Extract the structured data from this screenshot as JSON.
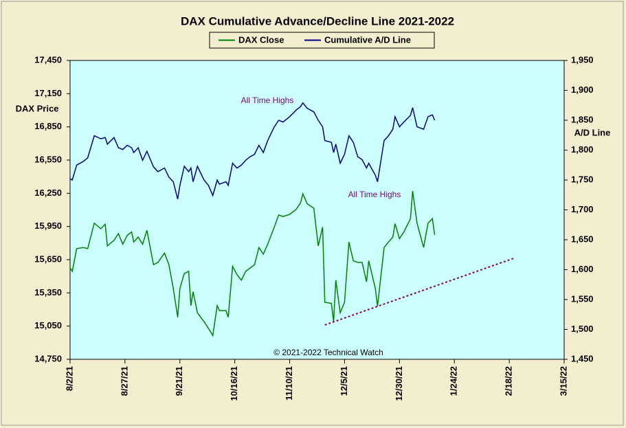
{
  "chart_data": {
    "type": "line",
    "title": "DAX Cumulative Advance/Decline Line 2021-2022",
    "ylabel": "DAX Price",
    "y2label": "A/D Line",
    "annotations": [
      "All Time Highs",
      "All Time Highs",
      "© 2021-2022 Technical Watch"
    ],
    "x": [
      "2021-08-02",
      "2021-08-03",
      "2021-08-05",
      "2021-08-08",
      "2021-08-10",
      "2021-08-13",
      "2021-08-16",
      "2021-08-18",
      "2021-08-19",
      "2021-08-22",
      "2021-08-24",
      "2021-08-26",
      "2021-08-28",
      "2021-08-30",
      "2021-08-31",
      "2021-09-02",
      "2021-09-04",
      "2021-09-06",
      "2021-09-09",
      "2021-09-11",
      "2021-09-14",
      "2021-09-16",
      "2021-09-18",
      "2021-09-20",
      "2021-09-21",
      "2021-09-23",
      "2021-09-25",
      "2021-09-26",
      "2021-09-27",
      "2021-09-29",
      "2021-10-02",
      "2021-10-04",
      "2021-10-06",
      "2021-10-08",
      "2021-10-09",
      "2021-10-12",
      "2021-10-13",
      "2021-10-15",
      "2021-10-17",
      "2021-10-19",
      "2021-10-21",
      "2021-10-23",
      "2021-10-25",
      "2021-10-27",
      "2021-10-29",
      "2021-10-31",
      "2021-11-03",
      "2021-11-05",
      "2021-11-07",
      "2021-11-10",
      "2021-11-13",
      "2021-11-15",
      "2021-11-16",
      "2021-11-18",
      "2021-11-21",
      "2021-11-23",
      "2021-11-25",
      "2021-11-26",
      "2021-11-29",
      "2021-11-30",
      "2021-12-01",
      "2021-12-03",
      "2021-12-05",
      "2021-12-07",
      "2021-12-09",
      "2021-12-11",
      "2021-12-13",
      "2021-12-15",
      "2021-12-16",
      "2021-12-19",
      "2021-12-20",
      "2021-12-23",
      "2021-12-25",
      "2021-12-27",
      "2021-12-28",
      "2021-12-30",
      "2022-01-01",
      "2022-01-04",
      "2022-01-05",
      "2022-01-07",
      "2022-01-10",
      "2022-01-12",
      "2022-01-14",
      "2022-01-15"
    ],
    "series": [
      {
        "name": "DAX Close",
        "color": "#008000",
        "values": [
          15575,
          15545,
          15750,
          15760,
          15750,
          15980,
          15930,
          15970,
          15775,
          15825,
          15885,
          15790,
          15870,
          15900,
          15810,
          15855,
          15790,
          15915,
          15605,
          15625,
          15710,
          15605,
          15390,
          15130,
          15390,
          15525,
          15545,
          15235,
          15360,
          15170,
          15090,
          15030,
          14965,
          15235,
          15190,
          15190,
          15130,
          15590,
          15515,
          15465,
          15545,
          15575,
          15605,
          15760,
          15700,
          15790,
          15945,
          16055,
          16040,
          16060,
          16105,
          16165,
          16245,
          16155,
          16115,
          15775,
          15945,
          15265,
          15255,
          15090,
          15465,
          15170,
          15265,
          15810,
          15640,
          15625,
          15625,
          15450,
          15640,
          15390,
          15230,
          15760,
          15810,
          15855,
          15975,
          15840,
          15900,
          16020,
          16270,
          15980,
          15760,
          15980,
          16020,
          15875
        ]
      },
      {
        "name": "Cumulative A/D Line",
        "color": "#000080",
        "axis": "y2",
        "values": [
          1752,
          1750,
          1775,
          1781,
          1787,
          1824,
          1819,
          1821,
          1810,
          1821,
          1804,
          1801,
          1808,
          1804,
          1796,
          1804,
          1783,
          1798,
          1772,
          1764,
          1770,
          1755,
          1747,
          1718,
          1741,
          1773,
          1764,
          1770,
          1747,
          1773,
          1750,
          1741,
          1724,
          1750,
          1743,
          1747,
          1741,
          1778,
          1770,
          1775,
          1783,
          1789,
          1793,
          1808,
          1796,
          1816,
          1839,
          1850,
          1847,
          1856,
          1867,
          1873,
          1879,
          1870,
          1864,
          1850,
          1839,
          1816,
          1813,
          1796,
          1810,
          1778,
          1793,
          1824,
          1813,
          1789,
          1784,
          1770,
          1778,
          1758,
          1747,
          1816,
          1824,
          1835,
          1856,
          1839,
          1847,
          1858,
          1871,
          1839,
          1835,
          1856,
          1859,
          1850
        ]
      }
    ],
    "trendline": {
      "x": [
        "2021-11-26",
        "2022-02-20"
      ],
      "values": [
        15060,
        15662
      ],
      "color": "#800060"
    },
    "xlim": [
      "2021-08-02",
      "2022-03-15"
    ],
    "xticks": [
      {
        "value": "2021-08-02",
        "label": "8/2/21"
      },
      {
        "value": "2021-08-27",
        "label": "8/27/21"
      },
      {
        "value": "2021-09-21",
        "label": "9/21/21"
      },
      {
        "value": "2021-10-16",
        "label": "10/16/21"
      },
      {
        "value": "2021-11-10",
        "label": "11/10/21"
      },
      {
        "value": "2021-12-05",
        "label": "12/5/21"
      },
      {
        "value": "2021-12-30",
        "label": "12/30/21"
      },
      {
        "value": "2022-01-24",
        "label": "1/24/22"
      },
      {
        "value": "2022-02-18",
        "label": "2/18/22"
      },
      {
        "value": "2022-03-15",
        "label": "3/15/22"
      }
    ],
    "ylim": [
      14750,
      17450
    ],
    "yticks": [
      {
        "value": 14750,
        "label": "14,750"
      },
      {
        "value": 15050,
        "label": "15,050"
      },
      {
        "value": 15350,
        "label": "15,350"
      },
      {
        "value": 15650,
        "label": "15,650"
      },
      {
        "value": 15950,
        "label": "15,950"
      },
      {
        "value": 16250,
        "label": "16,250"
      },
      {
        "value": 16550,
        "label": "16,550"
      },
      {
        "value": 16850,
        "label": "16,850"
      },
      {
        "value": 17150,
        "label": "17,150"
      },
      {
        "value": 17450,
        "label": "17,450"
      }
    ],
    "y2lim": [
      1450,
      1950
    ],
    "y2ticks": [
      {
        "value": 1450,
        "label": "1,450"
      },
      {
        "value": 1500,
        "label": "1,500"
      },
      {
        "value": 1550,
        "label": "1,550"
      },
      {
        "value": 1600,
        "label": "1,600"
      },
      {
        "value": 1650,
        "label": "1,650"
      },
      {
        "value": 1700,
        "label": "1,700"
      },
      {
        "value": 1750,
        "label": "1,750"
      },
      {
        "value": 1800,
        "label": "1,800"
      },
      {
        "value": 1850,
        "label": "1,850"
      },
      {
        "value": 1900,
        "label": "1,900"
      },
      {
        "value": 1950,
        "label": "1,950"
      }
    ],
    "legend": "top",
    "grid": false
  }
}
